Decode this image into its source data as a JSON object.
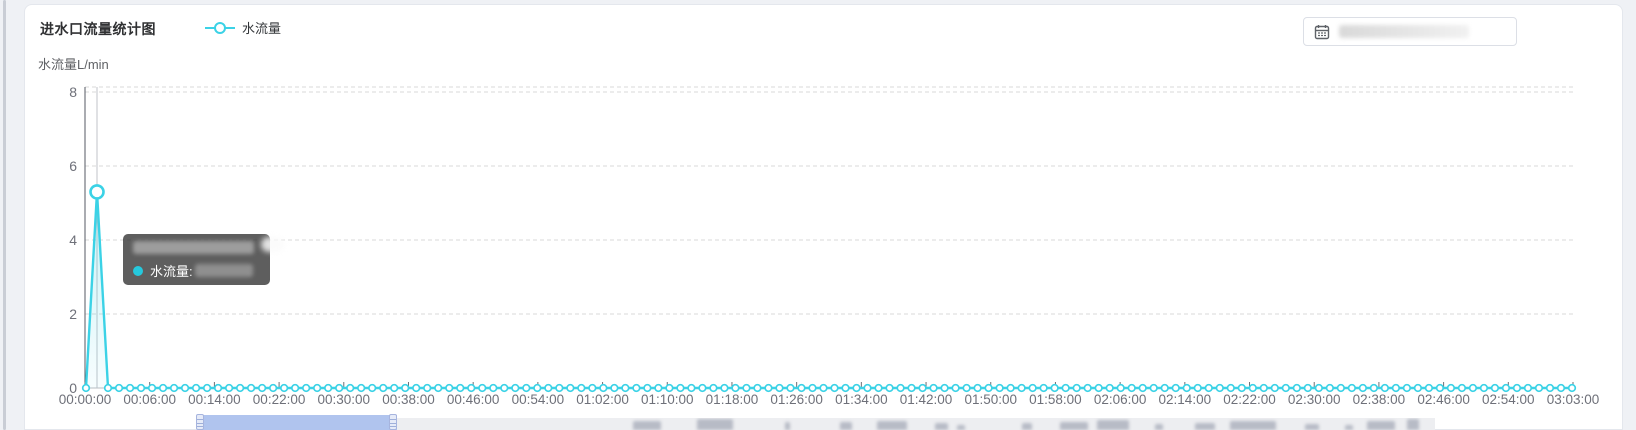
{
  "header": {
    "title": "进水口流量统计图",
    "legend_label": "水流量"
  },
  "toolbar": {
    "date_picker_icon": "calendar-icon"
  },
  "tooltip": {
    "series_label": "水流量:"
  },
  "chart_data": {
    "type": "line",
    "title": "进水口流量统计图",
    "legend": [
      "水流量"
    ],
    "ylabel": "水流量L/min",
    "y_ticks": [
      0,
      2,
      4,
      6,
      8
    ],
    "ylim": [
      0,
      8
    ],
    "x_tick_labels": [
      "00:00:00",
      "00:06:00",
      "00:14:00",
      "00:22:00",
      "00:30:00",
      "00:38:00",
      "00:46:00",
      "00:54:00",
      "01:02:00",
      "01:10:00",
      "01:18:00",
      "01:26:00",
      "01:34:00",
      "01:42:00",
      "01:50:00",
      "01:58:00",
      "02:06:00",
      "02:14:00",
      "02:22:00",
      "02:30:00",
      "02:38:00",
      "02:46:00",
      "02:54:00",
      "03:03:00"
    ],
    "num_points": 136,
    "baseline_value": 0,
    "spike_index": 1,
    "spike_value": 5.3,
    "grid": "dashed-horizontal",
    "legend_position": "top",
    "colors": {
      "series": "#3bd2e6",
      "tooltip_dot": "#25c9dd",
      "axis_label": "#6e7079",
      "gridline": "#d9d9d9",
      "axis_line": "#555a63",
      "datazoom_fill": "#b0c4ee"
    }
  }
}
